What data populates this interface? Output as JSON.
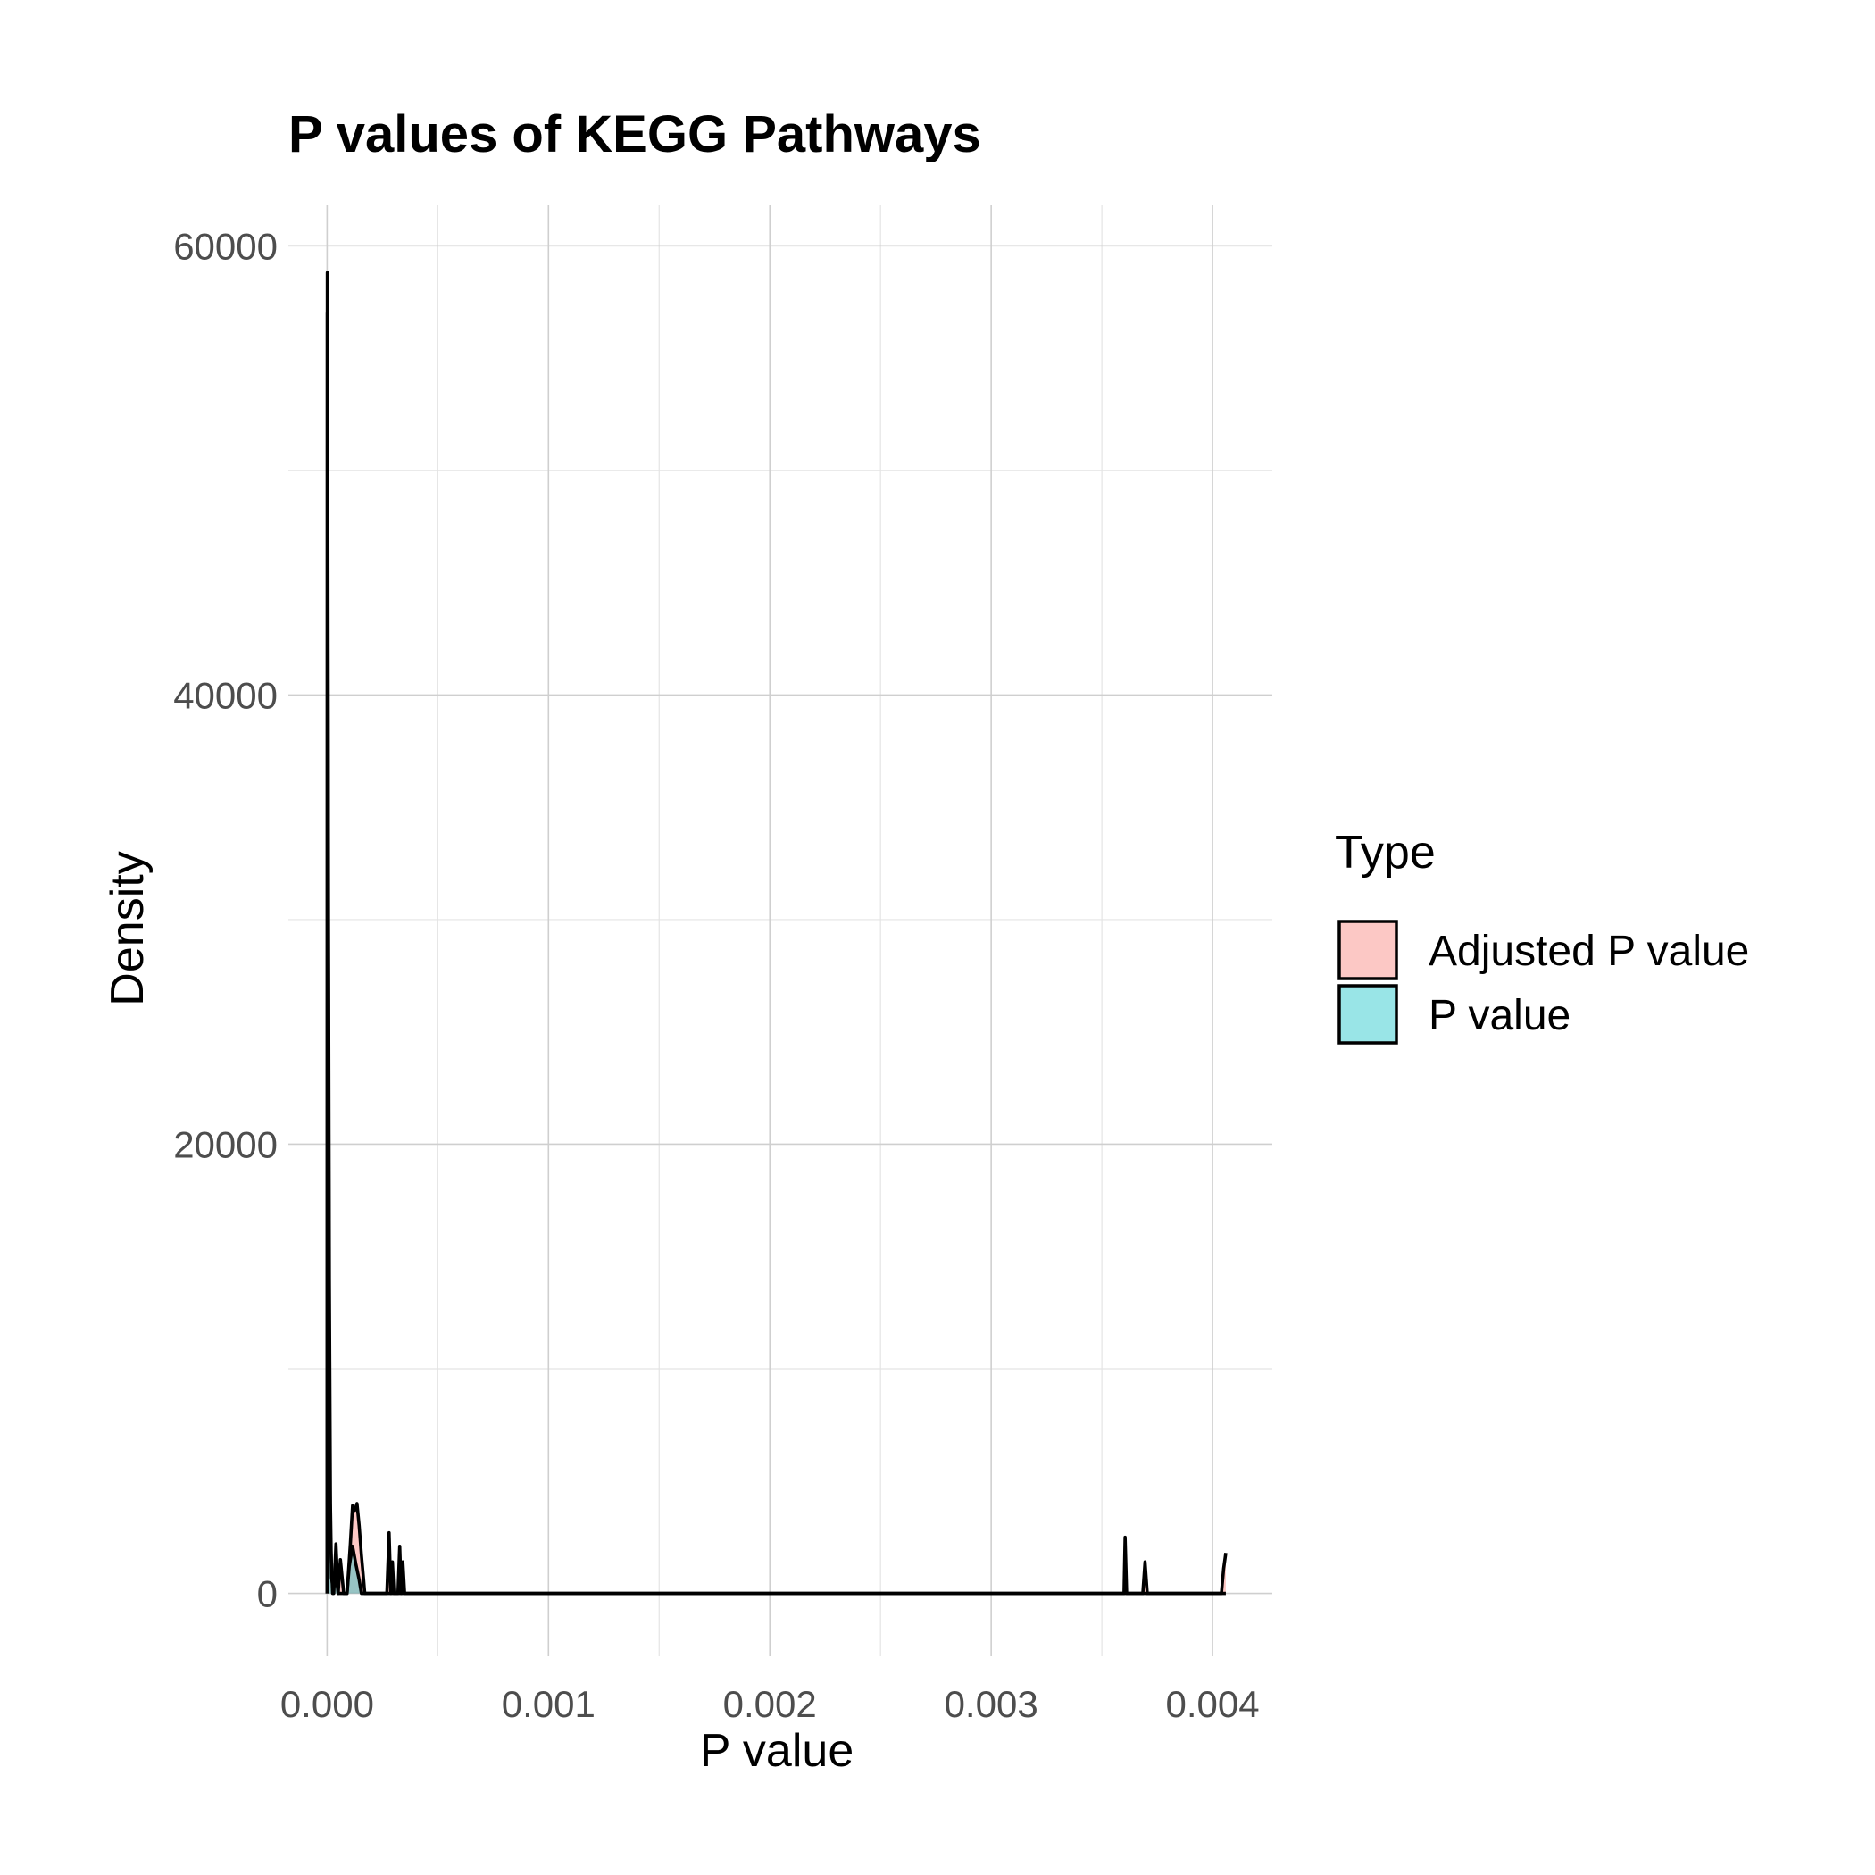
{
  "chart_data": {
    "type": "area",
    "title": "P values of KEGG Pathways",
    "xlabel": "P value",
    "ylabel": "Density",
    "xlim": [
      -0.000175,
      0.00427
    ],
    "ylim": [
      -2800,
      61800
    ],
    "x_ticks": [
      0.0,
      0.001,
      0.002,
      0.003,
      0.004
    ],
    "x_tick_labels": [
      "0.000",
      "0.001",
      "0.002",
      "0.003",
      "0.004"
    ],
    "y_ticks": [
      0,
      20000,
      40000,
      60000
    ],
    "y_tick_labels": [
      "0",
      "20000",
      "40000",
      "60000"
    ],
    "grid": true,
    "legend": {
      "title": "Type",
      "position": "right"
    },
    "series": [
      {
        "name": "Adjusted P value",
        "fill": "#F8766D",
        "fill_opacity": 0.4,
        "stroke": "#000000",
        "points": [
          [
            0.0,
            0
          ],
          [
            1e-06,
            58800
          ],
          [
            3e-06,
            49000
          ],
          [
            6e-06,
            30000
          ],
          [
            1e-05,
            14000
          ],
          [
            1.5e-05,
            4000
          ],
          [
            2e-05,
            700
          ],
          [
            3e-05,
            0
          ],
          [
            4e-05,
            2200
          ],
          [
            5e-05,
            0
          ],
          [
            6e-05,
            1500
          ],
          [
            7.5e-05,
            0
          ],
          [
            9e-05,
            0
          ],
          [
            0.000105,
            2200
          ],
          [
            0.000115,
            3900
          ],
          [
            0.000125,
            3700
          ],
          [
            0.000135,
            4000
          ],
          [
            0.000145,
            3000
          ],
          [
            0.000155,
            1700
          ],
          [
            0.000165,
            600
          ],
          [
            0.00017,
            0
          ],
          [
            0.00027,
            0
          ],
          [
            0.00028,
            2700
          ],
          [
            0.000288,
            0
          ],
          [
            0.000295,
            1400
          ],
          [
            0.000302,
            0
          ],
          [
            0.00032,
            0
          ],
          [
            0.000328,
            2100
          ],
          [
            0.000335,
            0
          ],
          [
            0.000342,
            1400
          ],
          [
            0.00035,
            0
          ],
          [
            0.0036,
            0
          ],
          [
            0.003605,
            2500
          ],
          [
            0.003612,
            0
          ],
          [
            0.003685,
            0
          ],
          [
            0.003695,
            1400
          ],
          [
            0.003705,
            0
          ],
          [
            0.00404,
            0
          ],
          [
            0.00405,
            1100
          ],
          [
            0.00406,
            1800
          ]
        ]
      },
      {
        "name": "P value",
        "fill": "#00BFC4",
        "fill_opacity": 0.4,
        "stroke": "#000000",
        "points": [
          [
            0.0,
            0
          ],
          [
            1e-06,
            57000
          ],
          [
            3e-06,
            44000
          ],
          [
            6e-06,
            24000
          ],
          [
            1e-05,
            9000
          ],
          [
            1.5e-05,
            2500
          ],
          [
            2.5e-05,
            0
          ],
          [
            4e-05,
            800
          ],
          [
            5e-05,
            0
          ],
          [
            9e-05,
            0
          ],
          [
            0.0001,
            1200
          ],
          [
            0.000115,
            2100
          ],
          [
            0.00013,
            1300
          ],
          [
            0.000145,
            600
          ],
          [
            0.000155,
            0
          ],
          [
            0.00406,
            0
          ]
        ]
      }
    ]
  }
}
